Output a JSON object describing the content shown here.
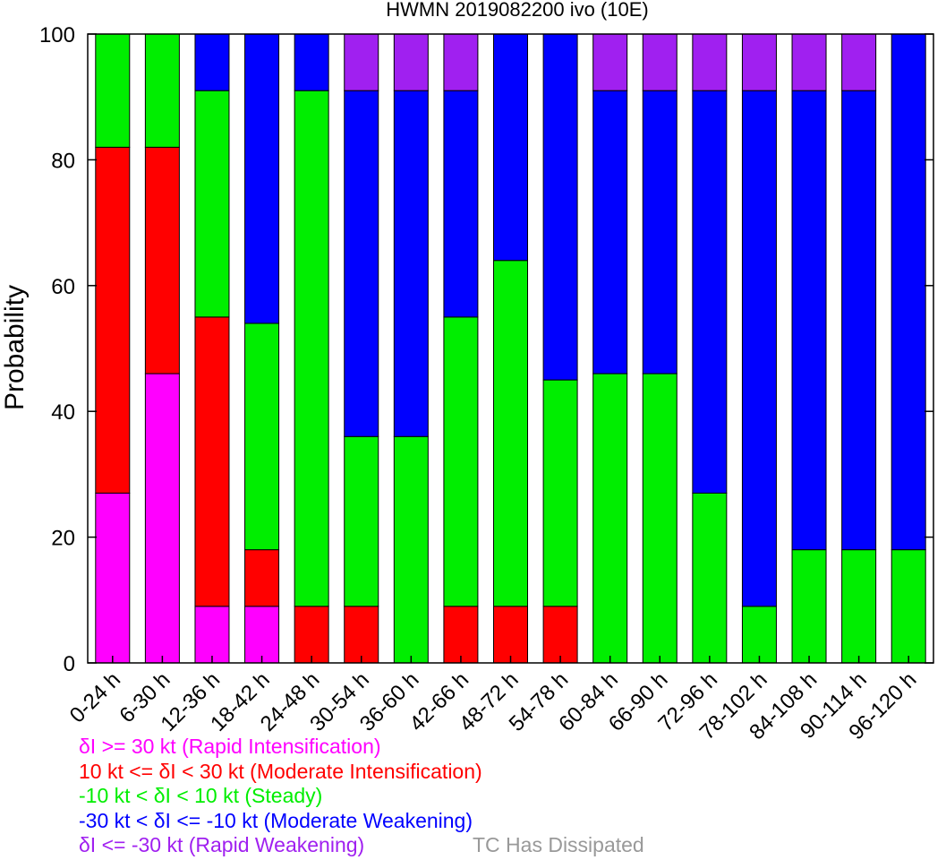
{
  "chart_data": {
    "type": "bar",
    "stacked": true,
    "title": "HWMN 2019082200 ivo (10E)",
    "ylabel": "Probability",
    "ylim": [
      0,
      100
    ],
    "yticks": [
      0,
      20,
      40,
      60,
      80,
      100
    ],
    "categories": [
      "0-24 h",
      "6-30 h",
      "12-36 h",
      "18-42 h",
      "24-48 h",
      "30-54 h",
      "36-60 h",
      "42-66 h",
      "48-72 h",
      "54-78 h",
      "60-84 h",
      "66-90 h",
      "72-96 h",
      "78-102 h",
      "84-108 h",
      "90-114 h",
      "96-120 h"
    ],
    "series": [
      {
        "name": "δI >= 30 kt (Rapid Intensification)",
        "color": "#ff00ff",
        "values": [
          27,
          46,
          9,
          9,
          0,
          0,
          0,
          0,
          0,
          0,
          0,
          0,
          0,
          0,
          0,
          0,
          0
        ]
      },
      {
        "name": "10 kt <= δI < 30 kt (Moderate Intensification)",
        "color": "#ff0000",
        "values": [
          55,
          36,
          46,
          9,
          9,
          9,
          0,
          9,
          9,
          9,
          0,
          0,
          0,
          0,
          0,
          0,
          0
        ]
      },
      {
        "name": "-10 kt < δI < 10 kt (Steady)",
        "color": "#00ee00",
        "values": [
          18,
          18,
          36,
          36,
          82,
          27,
          36,
          46,
          55,
          36,
          46,
          46,
          27,
          9,
          18,
          18,
          18
        ]
      },
      {
        "name": "-30 kt < δI <= -10 kt (Moderate Weakening)",
        "color": "#0000ff",
        "values": [
          0,
          0,
          9,
          46,
          9,
          55,
          55,
          36,
          36,
          55,
          45,
          45,
          64,
          82,
          73,
          73,
          82
        ]
      },
      {
        "name": "δI <= -30 kt (Rapid Weakening)",
        "color": "#a020f0",
        "values": [
          0,
          0,
          0,
          0,
          0,
          9,
          9,
          9,
          0,
          0,
          9,
          9,
          9,
          9,
          9,
          9,
          0
        ]
      },
      {
        "name": "TC Has Dissipated",
        "color": "#999999",
        "values": [
          0,
          0,
          0,
          0,
          0,
          0,
          0,
          0,
          0,
          0,
          0,
          0,
          0,
          0,
          0,
          0,
          0
        ]
      }
    ],
    "grid": false
  }
}
